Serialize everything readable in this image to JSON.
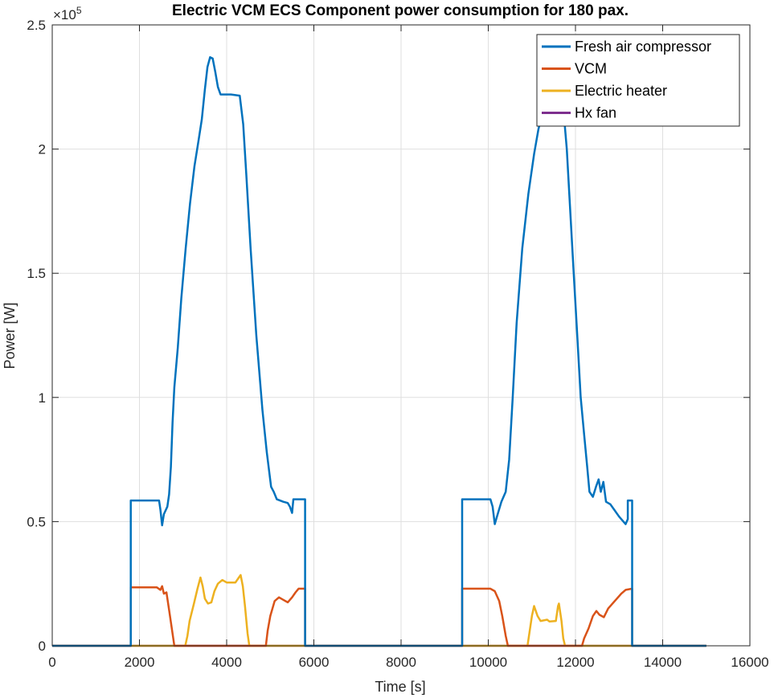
{
  "chart_data": {
    "type": "line",
    "title": "Electric VCM ECS Component power consumption for 180 pax.",
    "xlabel": "Time [s]",
    "ylabel": "Power [W]",
    "xlim": [
      0,
      16000
    ],
    "ylim": [
      0,
      250000
    ],
    "x_ticks": [
      0,
      2000,
      4000,
      6000,
      8000,
      10000,
      12000,
      14000,
      16000
    ],
    "x_tick_labels": [
      "0",
      "2000",
      "4000",
      "6000",
      "8000",
      "10000",
      "12000",
      "14000",
      "16000"
    ],
    "y_ticks": [
      0,
      50000,
      100000,
      150000,
      200000,
      250000
    ],
    "y_tick_labels": [
      "0",
      "0.5",
      "1",
      "1.5",
      "2",
      "2.5"
    ],
    "y_exponent_label": "×10",
    "y_exponent_power": "5",
    "grid": true,
    "legend_position": "top-right",
    "series": [
      {
        "name": "Fresh air compressor",
        "color": "#0072BD",
        "points": [
          [
            0,
            0
          ],
          [
            1800,
            0
          ],
          [
            1800,
            58500
          ],
          [
            2450,
            58500
          ],
          [
            2480,
            55000
          ],
          [
            2520,
            48500
          ],
          [
            2560,
            53000
          ],
          [
            2640,
            56000
          ],
          [
            2680,
            61000
          ],
          [
            2720,
            72000
          ],
          [
            2760,
            90000
          ],
          [
            2800,
            104000
          ],
          [
            2880,
            120000
          ],
          [
            2960,
            140000
          ],
          [
            3060,
            160000
          ],
          [
            3160,
            178000
          ],
          [
            3260,
            193000
          ],
          [
            3360,
            204000
          ],
          [
            3430,
            212000
          ],
          [
            3500,
            224000
          ],
          [
            3560,
            233000
          ],
          [
            3620,
            237000
          ],
          [
            3680,
            236500
          ],
          [
            3740,
            231000
          ],
          [
            3800,
            225000
          ],
          [
            3860,
            222000
          ],
          [
            4100,
            222000
          ],
          [
            4300,
            221500
          ],
          [
            4380,
            210000
          ],
          [
            4450,
            190000
          ],
          [
            4550,
            160000
          ],
          [
            4680,
            125000
          ],
          [
            4820,
            95000
          ],
          [
            4920,
            78000
          ],
          [
            5020,
            64000
          ],
          [
            5080,
            62000
          ],
          [
            5150,
            59000
          ],
          [
            5300,
            58000
          ],
          [
            5400,
            57500
          ],
          [
            5450,
            56000
          ],
          [
            5500,
            53500
          ],
          [
            5530,
            59000
          ],
          [
            5800,
            59000
          ],
          [
            5800,
            0
          ],
          [
            9400,
            0
          ],
          [
            9400,
            59000
          ],
          [
            10050,
            59000
          ],
          [
            10100,
            56000
          ],
          [
            10150,
            49000
          ],
          [
            10200,
            52000
          ],
          [
            10300,
            58000
          ],
          [
            10400,
            62000
          ],
          [
            10480,
            75000
          ],
          [
            10560,
            100000
          ],
          [
            10650,
            130000
          ],
          [
            10780,
            160000
          ],
          [
            10920,
            182000
          ],
          [
            11050,
            198000
          ],
          [
            11150,
            208000
          ],
          [
            11250,
            215000
          ],
          [
            11350,
            225000
          ],
          [
            11400,
            230000
          ],
          [
            11500,
            232000
          ],
          [
            11600,
            229000
          ],
          [
            11700,
            221000
          ],
          [
            11800,
            200000
          ],
          [
            11880,
            175000
          ],
          [
            11960,
            150000
          ],
          [
            12040,
            125000
          ],
          [
            12120,
            100000
          ],
          [
            12200,
            85000
          ],
          [
            12270,
            72000
          ],
          [
            12320,
            62000
          ],
          [
            12400,
            60000
          ],
          [
            12470,
            64000
          ],
          [
            12530,
            67000
          ],
          [
            12580,
            62000
          ],
          [
            12640,
            66000
          ],
          [
            12700,
            58000
          ],
          [
            12800,
            57000
          ],
          [
            12880,
            55000
          ],
          [
            13000,
            52000
          ],
          [
            13100,
            50000
          ],
          [
            13150,
            49000
          ],
          [
            13200,
            51000
          ],
          [
            13200,
            58500
          ],
          [
            13300,
            58500
          ],
          [
            13300,
            0
          ],
          [
            15000,
            0
          ]
        ]
      },
      {
        "name": "VCM",
        "color": "#D95319",
        "points": [
          [
            0,
            0
          ],
          [
            1800,
            0
          ],
          [
            1800,
            23500
          ],
          [
            2400,
            23500
          ],
          [
            2480,
            22500
          ],
          [
            2520,
            24000
          ],
          [
            2560,
            21000
          ],
          [
            2620,
            21500
          ],
          [
            2700,
            12000
          ],
          [
            2800,
            0
          ],
          [
            4900,
            0
          ],
          [
            4940,
            6000
          ],
          [
            5000,
            12000
          ],
          [
            5100,
            18000
          ],
          [
            5200,
            19500
          ],
          [
            5300,
            18500
          ],
          [
            5400,
            17500
          ],
          [
            5500,
            19500
          ],
          [
            5580,
            21500
          ],
          [
            5650,
            23000
          ],
          [
            5800,
            23000
          ],
          [
            5800,
            0
          ],
          [
            9400,
            0
          ],
          [
            9400,
            23000
          ],
          [
            10050,
            23000
          ],
          [
            10150,
            22000
          ],
          [
            10250,
            18000
          ],
          [
            10320,
            12000
          ],
          [
            10400,
            4000
          ],
          [
            10450,
            0
          ],
          [
            12150,
            0
          ],
          [
            12200,
            3000
          ],
          [
            12300,
            7000
          ],
          [
            12400,
            12000
          ],
          [
            12480,
            14000
          ],
          [
            12550,
            12500
          ],
          [
            12650,
            11500
          ],
          [
            12750,
            15000
          ],
          [
            12850,
            17000
          ],
          [
            12950,
            19000
          ],
          [
            13050,
            21000
          ],
          [
            13150,
            22500
          ],
          [
            13300,
            23000
          ],
          [
            13300,
            0
          ],
          [
            15000,
            0
          ]
        ]
      },
      {
        "name": "Electric heater",
        "color": "#EDB120",
        "points": [
          [
            0,
            0
          ],
          [
            3050,
            0
          ],
          [
            3100,
            4000
          ],
          [
            3150,
            10000
          ],
          [
            3250,
            17000
          ],
          [
            3330,
            23000
          ],
          [
            3400,
            27500
          ],
          [
            3450,
            24000
          ],
          [
            3500,
            19000
          ],
          [
            3570,
            17000
          ],
          [
            3650,
            17500
          ],
          [
            3720,
            22000
          ],
          [
            3800,
            25000
          ],
          [
            3900,
            26500
          ],
          [
            4000,
            25500
          ],
          [
            4200,
            25500
          ],
          [
            4280,
            27500
          ],
          [
            4320,
            28500
          ],
          [
            4370,
            24000
          ],
          [
            4420,
            16000
          ],
          [
            4480,
            5000
          ],
          [
            4520,
            0
          ],
          [
            10900,
            0
          ],
          [
            11000,
            12000
          ],
          [
            11050,
            16000
          ],
          [
            11130,
            12000
          ],
          [
            11200,
            10000
          ],
          [
            11350,
            10500
          ],
          [
            11400,
            9800
          ],
          [
            11550,
            10000
          ],
          [
            11600,
            16000
          ],
          [
            11620,
            17000
          ],
          [
            11680,
            10000
          ],
          [
            11720,
            3000
          ],
          [
            11760,
            0
          ],
          [
            15000,
            0
          ]
        ]
      },
      {
        "name": "Hx fan",
        "color": "#7E2F8E",
        "points": [
          [
            0,
            0
          ],
          [
            15000,
            0
          ]
        ]
      }
    ]
  }
}
